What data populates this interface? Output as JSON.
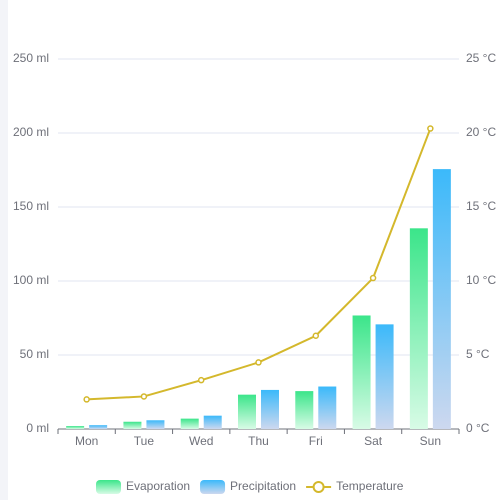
{
  "chart_data": {
    "type": "bar-line",
    "categories": [
      "Mon",
      "Tue",
      "Wed",
      "Thu",
      "Fri",
      "Sat",
      "Sun"
    ],
    "series": [
      {
        "name": "Evaporation",
        "type": "bar",
        "color": "#3be58a",
        "values": [
          2.0,
          4.9,
          7.0,
          23.2,
          25.6,
          76.7,
          135.6
        ]
      },
      {
        "name": "Precipitation",
        "type": "bar",
        "color": "#3bb9fa",
        "values": [
          2.6,
          5.9,
          9.0,
          26.4,
          28.7,
          70.7,
          175.6
        ]
      },
      {
        "name": "Temperature",
        "type": "line",
        "axis": "y2",
        "color": "#d4b82c",
        "values": [
          2.0,
          2.2,
          3.3,
          4.5,
          6.3,
          10.2,
          20.3
        ]
      }
    ],
    "ylim": [
      0,
      250
    ],
    "yticks": [
      {
        "value": 0,
        "label": "0 ml"
      },
      {
        "value": 50,
        "label": "50 ml"
      },
      {
        "value": 100,
        "label": "100 ml"
      },
      {
        "value": 150,
        "label": "150 ml"
      },
      {
        "value": 200,
        "label": "200 ml"
      },
      {
        "value": 250,
        "label": "250 ml"
      }
    ],
    "y2lim": [
      0,
      25
    ],
    "y2ticks": [
      {
        "value": 0,
        "label": "0 °C"
      },
      {
        "value": 5,
        "label": "5 °C"
      },
      {
        "value": 10,
        "label": "10 °C"
      },
      {
        "value": 15,
        "label": "15 °C"
      },
      {
        "value": 20,
        "label": "20 °C"
      },
      {
        "value": 25,
        "label": "25 °C"
      }
    ],
    "grid": true,
    "legend": "bottom"
  }
}
